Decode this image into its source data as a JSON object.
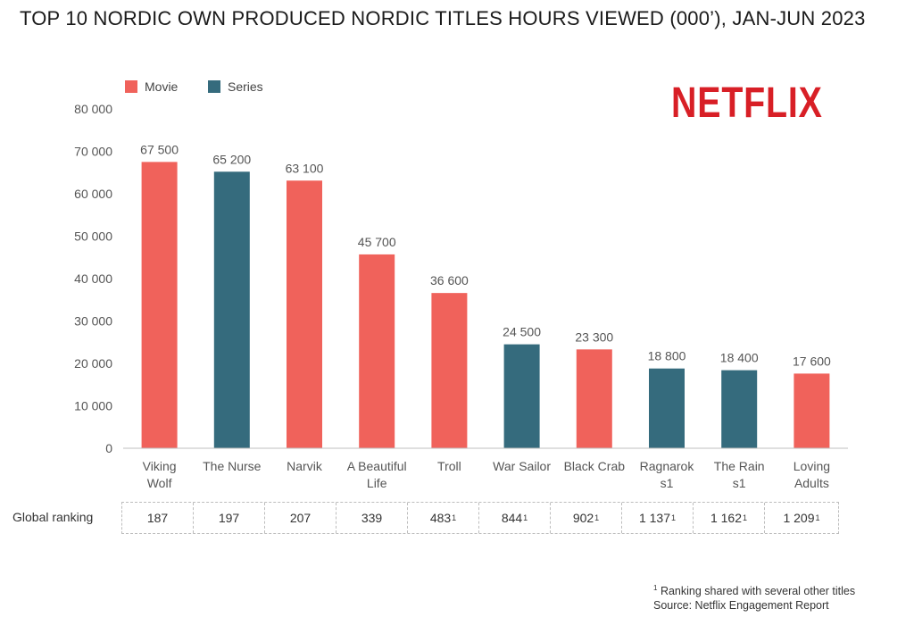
{
  "title": "TOP 10 NORDIC OWN PRODUCED NORDIC TITLES HOURS VIEWED (000’), JAN-JUN 2023",
  "logo_text": "NETFLIX",
  "colors": {
    "movie": "#f0625b",
    "series": "#356b7d",
    "logo": "#d81f26"
  },
  "legend": [
    {
      "name": "Movie",
      "color": "#f0625b"
    },
    {
      "name": "Series",
      "color": "#356b7d"
    }
  ],
  "chart_data": {
    "type": "bar",
    "title": "TOP 10 NORDIC OWN PRODUCED NORDIC TITLES HOURS VIEWED (000’), JAN-JUN 2023",
    "xlabel": "",
    "ylabel": "",
    "ylim": [
      0,
      80000
    ],
    "yticks": [
      "0",
      "10 000",
      "20 000",
      "30 000",
      "40 000",
      "50 000",
      "60 000",
      "70 000",
      "80 000"
    ],
    "categories": [
      [
        "Viking",
        "Wolf"
      ],
      [
        "The Nurse"
      ],
      [
        "Narvik"
      ],
      [
        "A Beautiful",
        "Life"
      ],
      [
        "Troll"
      ],
      [
        "War Sailor"
      ],
      [
        "Black Crab"
      ],
      [
        "Ragnarok",
        "s1"
      ],
      [
        "The Rain",
        "s1"
      ],
      [
        "Loving",
        "Adults"
      ]
    ],
    "values": [
      67500,
      65200,
      63100,
      45700,
      36600,
      24500,
      23300,
      18800,
      18400,
      17600
    ],
    "data_labels": [
      "67 500",
      "65 200",
      "63 100",
      "45 700",
      "36 600",
      "24 500",
      "23 300",
      "18 800",
      "18 400",
      "17 600"
    ],
    "kinds": [
      "Movie",
      "Series",
      "Movie",
      "Movie",
      "Movie",
      "Series",
      "Movie",
      "Series",
      "Series",
      "Movie"
    ],
    "legend_position": "top-left",
    "grid": false
  },
  "ranking": {
    "label": "Global ranking",
    "cells": [
      {
        "value": "187",
        "note": ""
      },
      {
        "value": "197",
        "note": ""
      },
      {
        "value": "207",
        "note": ""
      },
      {
        "value": "339",
        "note": ""
      },
      {
        "value": "483",
        "note": "1"
      },
      {
        "value": "844",
        "note": "1"
      },
      {
        "value": "902",
        "note": "1"
      },
      {
        "value": "1 137",
        "note": "1"
      },
      {
        "value": "1 162",
        "note": "1"
      },
      {
        "value": "1 209",
        "note": "1"
      }
    ]
  },
  "footnotes": {
    "marker": "1",
    "shared": "Ranking shared with several other titles",
    "source": "Source: Netflix Engagement Report"
  }
}
